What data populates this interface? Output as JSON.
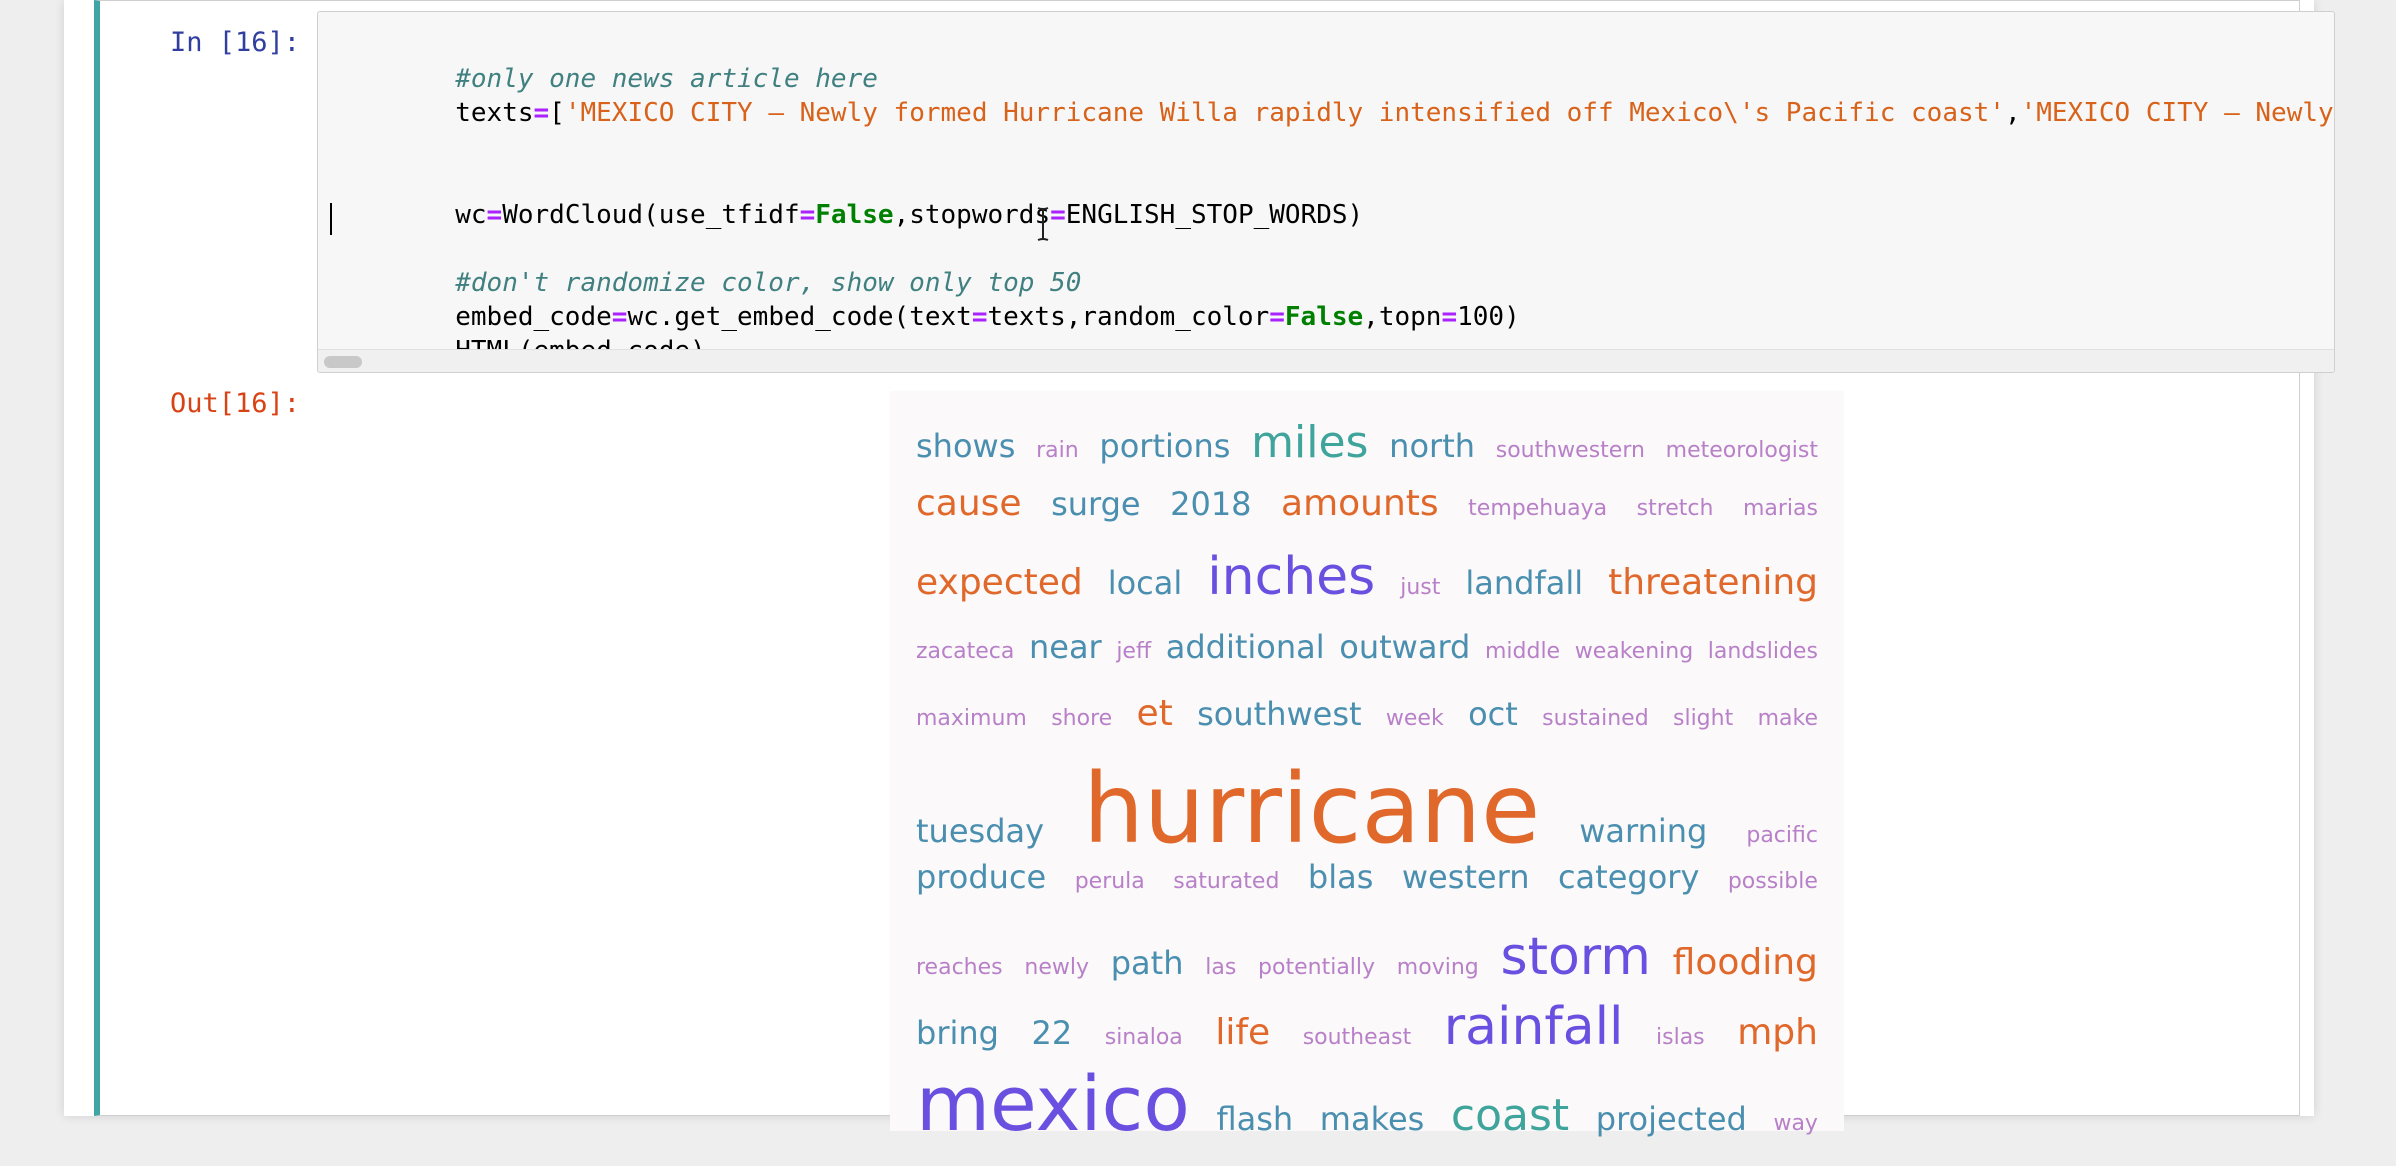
{
  "notebook": {
    "in_prompt": "In [16]:",
    "out_prompt": "Out[16]:",
    "code": {
      "line1_comment": "#only one news article here",
      "line2_prefix": "texts",
      "line2_eq": "=",
      "line2_bracket": "[",
      "line2_str1": "'MEXICO CITY — Newly formed Hurricane Willa rapidly intensified off Mexico\\'s Pacific coast'",
      "line2_comma": ",",
      "line2_str2": "'MEXICO CITY — Newly formed Hurricane Willa rapidly intensified off Mexico\\'s Pacific coast'",
      "line5_wc": "wc",
      "line5_eq": "=",
      "line5_func": "WordCloud(use_tfidf",
      "line5_eq2": "=",
      "line5_false": "False",
      "line5_mid": ",stopwords",
      "line5_eq3": "=",
      "line5_end": "ENGLISH_STOP_WORDS)",
      "line7_comment": "#don't randomize color, show only top 50",
      "line8_a": "embed_code",
      "line8_eq": "=",
      "line8_b": "wc.get_embed_code(text",
      "line8_eq2": "=",
      "line8_c": "texts,random_color",
      "line8_eq3": "=",
      "line8_false": "False",
      "line8_d": ",topn",
      "line8_eq4": "=",
      "line8_e": "100)",
      "line9": "HTML(embed_code)"
    }
  },
  "wordcloud": {
    "colors": {
      "orange": "#e0682a",
      "teal": "#4a8fb0",
      "green": "#3fa49b",
      "purple": "#6a4fe0",
      "pink": "#b880c8"
    },
    "rows": [
      [
        {
          "text": "shows",
          "size": 32,
          "color": "#4a8fb0"
        },
        {
          "text": "rain",
          "size": 22,
          "color": "#b880c8"
        },
        {
          "text": "portions",
          "size": 32,
          "color": "#4a8fb0"
        },
        {
          "text": "miles",
          "size": 44,
          "color": "#3fa49b"
        },
        {
          "text": "north",
          "size": 32,
          "color": "#4a8fb0"
        },
        {
          "text": "southwestern",
          "size": 22,
          "color": "#b880c8"
        },
        {
          "text": "meteorologist",
          "size": 22,
          "color": "#b880c8"
        }
      ],
      [
        {
          "text": "cause",
          "size": 36,
          "color": "#e0682a"
        },
        {
          "text": "surge",
          "size": 32,
          "color": "#4a8fb0"
        },
        {
          "text": "2018",
          "size": 32,
          "color": "#4a8fb0"
        },
        {
          "text": "amounts",
          "size": 36,
          "color": "#e0682a"
        },
        {
          "text": "tempehuaya",
          "size": 22,
          "color": "#b880c8"
        },
        {
          "text": "stretch",
          "size": 22,
          "color": "#b880c8"
        },
        {
          "text": "marias",
          "size": 22,
          "color": "#b880c8"
        }
      ],
      [
        {
          "text": "expected",
          "size": 36,
          "color": "#e0682a"
        },
        {
          "text": "local",
          "size": 32,
          "color": "#4a8fb0"
        },
        {
          "text": "inches",
          "size": 52,
          "color": "#6a4fe0"
        },
        {
          "text": "just",
          "size": 22,
          "color": "#b880c8"
        },
        {
          "text": "landfall",
          "size": 32,
          "color": "#4a8fb0"
        },
        {
          "text": "threatening",
          "size": 36,
          "color": "#e0682a"
        }
      ],
      [
        {
          "text": "zacateca",
          "size": 22,
          "color": "#b880c8"
        },
        {
          "text": "near",
          "size": 32,
          "color": "#4a8fb0"
        },
        {
          "text": "jeff",
          "size": 22,
          "color": "#b880c8"
        },
        {
          "text": "additional",
          "size": 32,
          "color": "#4a8fb0"
        },
        {
          "text": "outward",
          "size": 32,
          "color": "#4a8fb0"
        },
        {
          "text": "middle",
          "size": 22,
          "color": "#b880c8"
        },
        {
          "text": "weakening",
          "size": 22,
          "color": "#b880c8"
        },
        {
          "text": "landslides",
          "size": 22,
          "color": "#b880c8"
        }
      ],
      [
        {
          "text": "maximum",
          "size": 22,
          "color": "#b880c8"
        },
        {
          "text": "shore",
          "size": 22,
          "color": "#b880c8"
        },
        {
          "text": "et",
          "size": 36,
          "color": "#e0682a"
        },
        {
          "text": "southwest",
          "size": 32,
          "color": "#4a8fb0"
        },
        {
          "text": "week",
          "size": 22,
          "color": "#b880c8"
        },
        {
          "text": "oct",
          "size": 32,
          "color": "#4a8fb0"
        },
        {
          "text": "sustained",
          "size": 22,
          "color": "#b880c8"
        },
        {
          "text": "slight",
          "size": 22,
          "color": "#b880c8"
        },
        {
          "text": "make",
          "size": 22,
          "color": "#b880c8"
        }
      ],
      [
        {
          "text": "tuesday",
          "size": 32,
          "color": "#4a8fb0"
        },
        {
          "text": "hurricane",
          "size": 96,
          "color": "#e0682a"
        },
        {
          "text": "warning",
          "size": 32,
          "color": "#4a8fb0"
        },
        {
          "text": "pacific",
          "size": 22,
          "color": "#b880c8"
        }
      ],
      [
        {
          "text": "produce",
          "size": 32,
          "color": "#4a8fb0"
        },
        {
          "text": "perula",
          "size": 22,
          "color": "#b880c8"
        },
        {
          "text": "saturated",
          "size": 22,
          "color": "#b880c8"
        },
        {
          "text": "blas",
          "size": 32,
          "color": "#4a8fb0"
        },
        {
          "text": "western",
          "size": 32,
          "color": "#4a8fb0"
        },
        {
          "text": "category",
          "size": 32,
          "color": "#4a8fb0"
        },
        {
          "text": "possible",
          "size": 22,
          "color": "#b880c8"
        }
      ],
      [
        {
          "text": "reaches",
          "size": 22,
          "color": "#b880c8"
        },
        {
          "text": "newly",
          "size": 22,
          "color": "#b880c8"
        },
        {
          "text": "path",
          "size": 32,
          "color": "#4a8fb0"
        },
        {
          "text": "las",
          "size": 22,
          "color": "#b880c8"
        },
        {
          "text": "potentially",
          "size": 22,
          "color": "#b880c8"
        },
        {
          "text": "moving",
          "size": 22,
          "color": "#b880c8"
        },
        {
          "text": "storm",
          "size": 52,
          "color": "#6a4fe0"
        },
        {
          "text": "flooding",
          "size": 36,
          "color": "#e0682a"
        }
      ],
      [
        {
          "text": "bring",
          "size": 32,
          "color": "#4a8fb0"
        },
        {
          "text": "22",
          "size": 32,
          "color": "#4a8fb0"
        },
        {
          "text": "sinaloa",
          "size": 22,
          "color": "#b880c8"
        },
        {
          "text": "life",
          "size": 36,
          "color": "#e0682a"
        },
        {
          "text": "southeast",
          "size": 22,
          "color": "#b880c8"
        },
        {
          "text": "rainfall",
          "size": 52,
          "color": "#6a4fe0"
        },
        {
          "text": "islas",
          "size": 22,
          "color": "#b880c8"
        },
        {
          "text": "mph",
          "size": 36,
          "color": "#e0682a"
        }
      ],
      [
        {
          "text": "mexico",
          "size": 76,
          "color": "#6a4fe0"
        },
        {
          "text": "flash",
          "size": 32,
          "color": "#4a8fb0"
        },
        {
          "text": "makes",
          "size": 32,
          "color": "#4a8fb0"
        },
        {
          "text": "coast",
          "size": 44,
          "color": "#3fa49b"
        },
        {
          "text": "projected",
          "size": 32,
          "color": "#4a8fb0"
        },
        {
          "text": "way",
          "size": 22,
          "color": "#b880c8"
        }
      ]
    ]
  }
}
